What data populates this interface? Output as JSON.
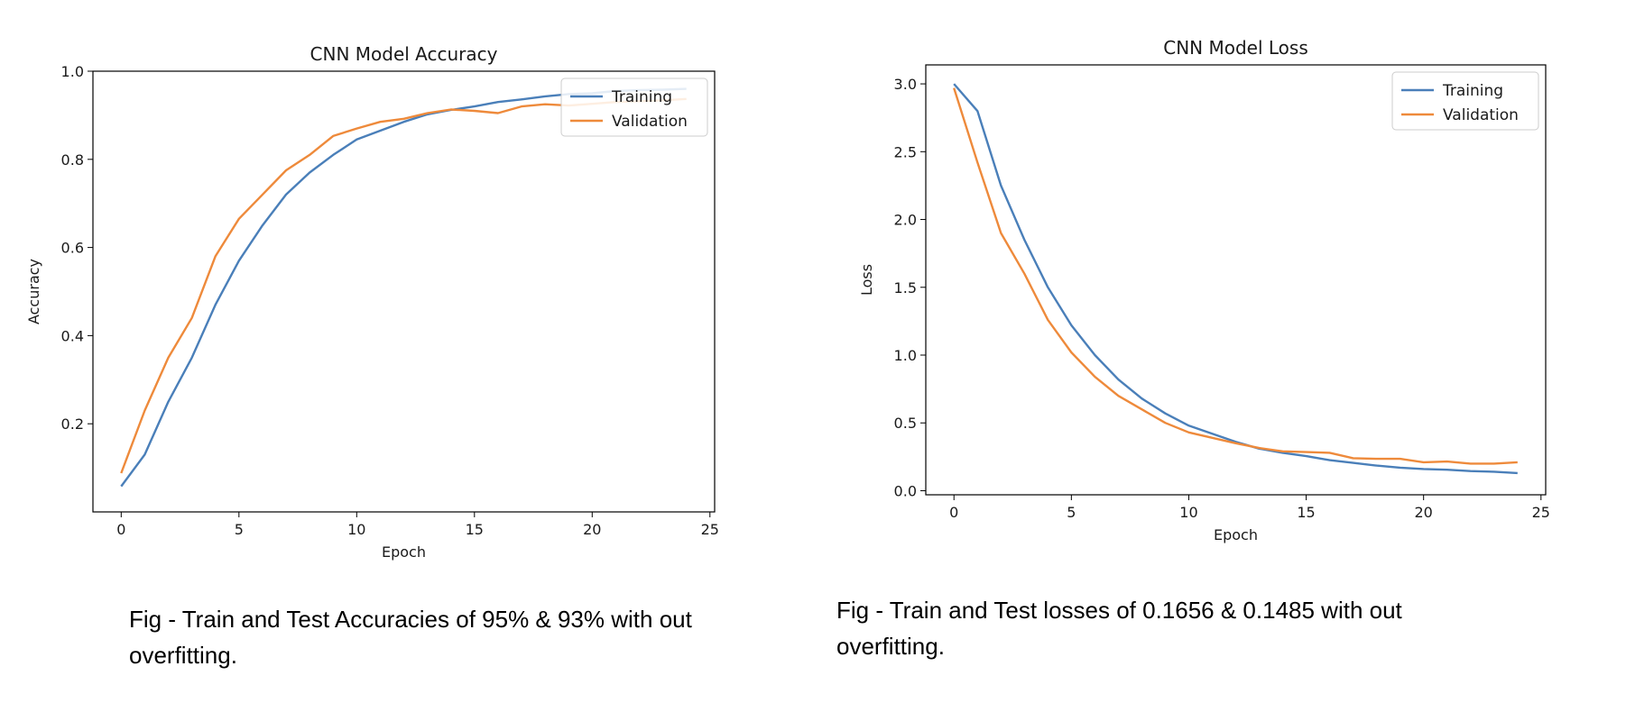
{
  "chart_data": [
    {
      "type": "line",
      "title": "CNN Model Accuracy",
      "xlabel": "Epoch",
      "ylabel": "Accuracy",
      "xlim": [
        -1.2,
        25.2
      ],
      "ylim": [
        0.0,
        1.0
      ],
      "xticks": [
        0,
        5,
        10,
        15,
        20,
        25
      ],
      "yticks": [
        0.2,
        0.4,
        0.6,
        0.8,
        1.0
      ],
      "ytick_labels": [
        "0.2",
        "0.4",
        "0.6",
        "0.8",
        "1.0"
      ],
      "grid": false,
      "legend_position": "top-right",
      "x": [
        0,
        1,
        2,
        3,
        4,
        5,
        6,
        7,
        8,
        9,
        10,
        11,
        12,
        13,
        14,
        15,
        16,
        17,
        18,
        19,
        20,
        21,
        22,
        23,
        24
      ],
      "series": [
        {
          "name": "Training",
          "color": "#4a7fb9",
          "values": [
            0.058,
            0.13,
            0.25,
            0.35,
            0.47,
            0.57,
            0.65,
            0.72,
            0.77,
            0.81,
            0.845,
            0.865,
            0.885,
            0.902,
            0.912,
            0.92,
            0.93,
            0.936,
            0.943,
            0.948,
            0.95,
            0.955,
            0.957,
            0.958,
            0.96
          ]
        },
        {
          "name": "Validation",
          "color": "#ee8a3b",
          "values": [
            0.088,
            0.23,
            0.35,
            0.44,
            0.58,
            0.665,
            0.72,
            0.775,
            0.81,
            0.853,
            0.87,
            0.885,
            0.892,
            0.905,
            0.913,
            0.91,
            0.905,
            0.92,
            0.925,
            0.922,
            0.926,
            0.93,
            0.932,
            0.934,
            0.937
          ]
        }
      ]
    },
    {
      "type": "line",
      "title": "CNN Model Loss",
      "xlabel": "Epoch",
      "ylabel": "Loss",
      "xlim": [
        -1.2,
        25.2
      ],
      "ylim": [
        -0.03,
        3.14
      ],
      "xticks": [
        0,
        5,
        10,
        15,
        20,
        25
      ],
      "yticks": [
        0.0,
        0.5,
        1.0,
        1.5,
        2.0,
        2.5,
        3.0
      ],
      "ytick_labels": [
        "0.0",
        "0.5",
        "1.0",
        "1.5",
        "2.0",
        "2.5",
        "3.0"
      ],
      "grid": false,
      "legend_position": "top-right",
      "x": [
        0,
        1,
        2,
        3,
        4,
        5,
        6,
        7,
        8,
        9,
        10,
        11,
        12,
        13,
        14,
        15,
        16,
        17,
        18,
        19,
        20,
        21,
        22,
        23,
        24
      ],
      "series": [
        {
          "name": "Training",
          "color": "#4a7fb9",
          "values": [
            3.0,
            2.8,
            2.25,
            1.85,
            1.5,
            1.22,
            1.0,
            0.82,
            0.68,
            0.57,
            0.48,
            0.42,
            0.36,
            0.31,
            0.28,
            0.255,
            0.225,
            0.205,
            0.185,
            0.17,
            0.16,
            0.155,
            0.145,
            0.14,
            0.13
          ]
        },
        {
          "name": "Validation",
          "color": "#ee8a3b",
          "values": [
            2.97,
            2.42,
            1.9,
            1.6,
            1.26,
            1.02,
            0.84,
            0.7,
            0.6,
            0.5,
            0.43,
            0.39,
            0.35,
            0.315,
            0.29,
            0.285,
            0.28,
            0.24,
            0.235,
            0.235,
            0.21,
            0.215,
            0.2,
            0.2,
            0.21
          ]
        }
      ]
    }
  ],
  "captions": [
    {
      "line1": "Fig - Train and Test Accuracies of 95% & 93% with out",
      "line2": "overfitting."
    },
    {
      "line1": "Fig - Train and Test losses of 0.1656 & 0.1485 with out",
      "line2": "overfitting."
    }
  ]
}
